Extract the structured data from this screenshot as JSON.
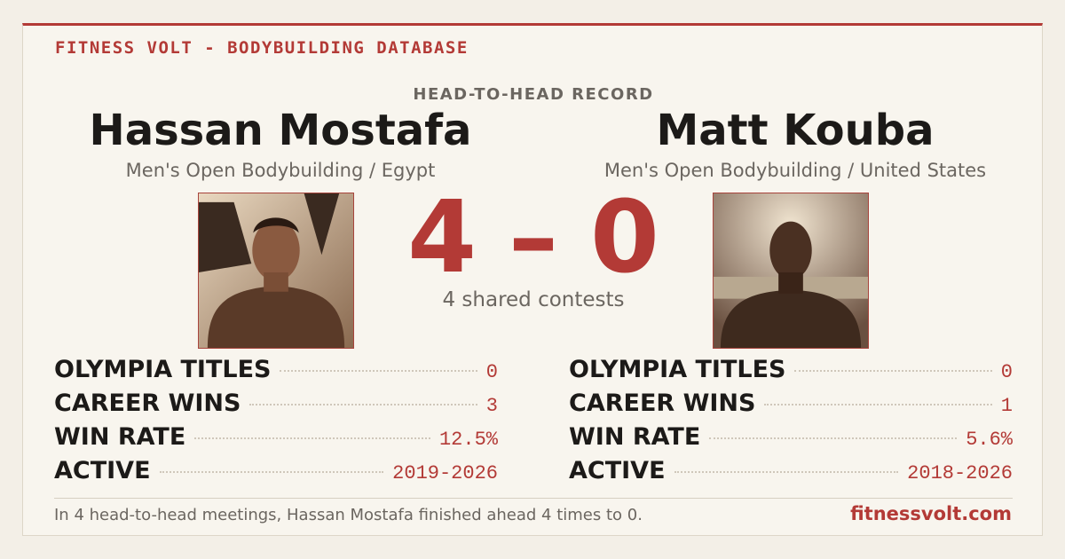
{
  "header": {
    "brand": "FITNESS VOLT - BODYBUILDING DATABASE",
    "title": "HEAD-TO-HEAD RECORD"
  },
  "fighters": [
    {
      "name": "Hassan Mostafa",
      "division": "Men's Open Bodybuilding / Egypt",
      "stats": [
        {
          "label": "OLYMPIA TITLES",
          "value": "0"
        },
        {
          "label": "CAREER WINS",
          "value": "3"
        },
        {
          "label": "WIN RATE",
          "value": "12.5%"
        },
        {
          "label": "ACTIVE",
          "value": "2019-2026"
        }
      ]
    },
    {
      "name": "Matt Kouba",
      "division": "Men's Open Bodybuilding / United States",
      "stats": [
        {
          "label": "OLYMPIA TITLES",
          "value": "0"
        },
        {
          "label": "CAREER WINS",
          "value": "1"
        },
        {
          "label": "WIN RATE",
          "value": "5.6%"
        },
        {
          "label": "ACTIVE",
          "value": "2018-2026"
        }
      ]
    }
  ],
  "score": {
    "left": "4",
    "separator": "–",
    "right": "0",
    "caption": "4 shared contests"
  },
  "footer": {
    "summary": "In 4 head-to-head meetings, Hassan Mostafa finished ahead 4 times to 0.",
    "site": "fitnessvolt.com"
  }
}
